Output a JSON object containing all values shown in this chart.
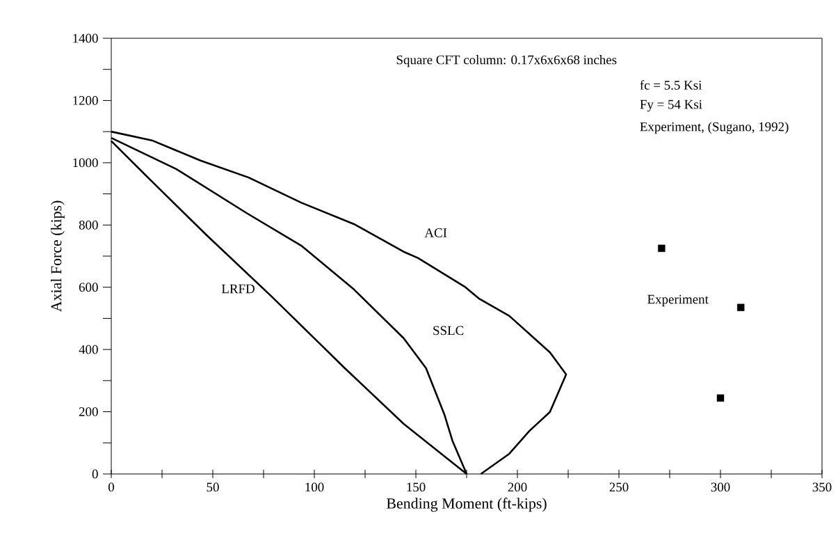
{
  "chart_data": {
    "type": "line",
    "xlabel": "Bending Moment  (ft-kips)",
    "ylabel": "Axial Force  (kips)",
    "xlim": [
      0,
      350
    ],
    "ylim": [
      0,
      1400
    ],
    "xticks": [
      0,
      {
        "value": 25,
        "label": null
      },
      50,
      {
        "value": 75,
        "label": null
      },
      100,
      {
        "value": 125,
        "label": null
      },
      150,
      {
        "value": 175,
        "label": null
      },
      200,
      {
        "value": 225,
        "label": null
      },
      250,
      {
        "value": 275,
        "label": null
      },
      300,
      {
        "value": 325,
        "label": null
      },
      350
    ],
    "yticks": [
      0,
      {
        "value": 100,
        "label": null
      },
      200,
      {
        "value": 300,
        "label": null
      },
      400,
      {
        "value": 500,
        "label": null
      },
      600,
      {
        "value": 700,
        "label": null
      },
      800,
      {
        "value": 900,
        "label": null
      },
      1000,
      {
        "value": 1100,
        "label": null
      },
      1200,
      {
        "value": 1300,
        "label": null
      },
      1400
    ],
    "grid": false,
    "annotations": [
      "Square CFT column:  0.17x6x6x68  inches",
      "fc  =  5.5  Ksi",
      "Fy = 54   Ksi",
      "Experiment, (Sugano, 1992)"
    ],
    "series": [
      {
        "name": "ACI",
        "color": "#000000",
        "type": "line",
        "marker": "none",
        "x": [
          0,
          20,
          44,
          67.5,
          93.5,
          119.5,
          144,
          151,
          174,
          181,
          196,
          216,
          224,
          216,
          206,
          196,
          182
        ],
        "values": [
          1100,
          1072,
          1007,
          953,
          872,
          803,
          714,
          694,
          602,
          564,
          508,
          391,
          320,
          199,
          139,
          65,
          0
        ]
      },
      {
        "name": "SSLC",
        "color": "#000000",
        "type": "line",
        "marker": "none",
        "x": [
          0,
          32,
          67,
          93.5,
          119.5,
          144,
          155,
          164,
          168,
          175
        ],
        "values": [
          1080,
          980,
          837,
          734,
          593,
          436,
          340,
          192,
          107,
          0
        ]
      },
      {
        "name": "LRFD",
        "color": "#000000",
        "type": "line",
        "marker": "none",
        "x": [
          0,
          20,
          47,
          79,
          115,
          144,
          175
        ],
        "values": [
          1070,
          940,
          767,
          570,
          340,
          161,
          0
        ]
      },
      {
        "name": "Experiment",
        "color": "#000000",
        "type": "scatter",
        "marker": "square",
        "x": [
          271,
          310,
          300
        ],
        "values": [
          725,
          535,
          244
        ]
      }
    ]
  }
}
